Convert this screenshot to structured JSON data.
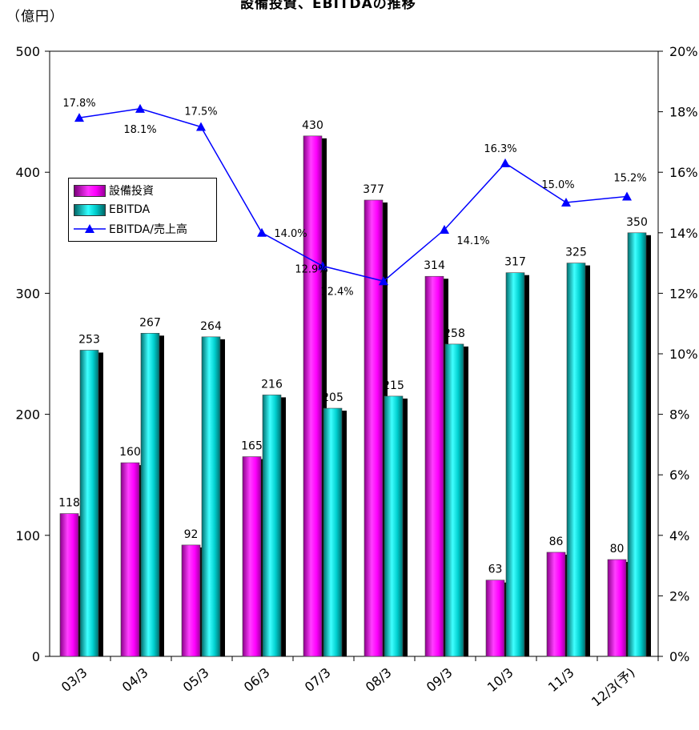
{
  "unit_label": "（億円）",
  "title": "設備投資、EBITDAの推移",
  "chart_data": {
    "type": "bar",
    "title": "設備投資、EBITDAの推移",
    "categories": [
      "03/3",
      "04/3",
      "05/3",
      "06/3",
      "07/3",
      "08/3",
      "09/3",
      "10/3",
      "11/3",
      "12/3(予)"
    ],
    "series": [
      {
        "name": "設備投資",
        "type": "bar",
        "axis": "left",
        "color": "#ff00ff",
        "values": [
          118,
          160,
          92,
          165,
          430,
          377,
          314,
          63,
          86,
          80
        ]
      },
      {
        "name": "EBITDA",
        "type": "bar",
        "axis": "left",
        "color": "#00cccc",
        "values": [
          253,
          267,
          264,
          216,
          205,
          215,
          258,
          317,
          325,
          350
        ]
      },
      {
        "name": "EBITDA/売上高",
        "type": "line",
        "axis": "right",
        "color": "#0000ff",
        "marker": "triangle",
        "values": [
          17.8,
          18.1,
          17.5,
          14.0,
          12.9,
          12.4,
          14.1,
          16.3,
          15.0,
          15.2
        ],
        "labels": [
          "17.8%",
          "18.1%",
          "17.5%",
          "14.0%",
          "12.9%",
          "12.4%",
          "14.1%",
          "16.3%",
          "15.0%",
          "15.2%"
        ]
      }
    ],
    "y_left": {
      "min": 0,
      "max": 500,
      "ticks": [
        "0",
        "100",
        "200",
        "300",
        "400",
        "500"
      ]
    },
    "y_right": {
      "min": 0,
      "max": 20,
      "ticks": [
        "0%",
        "2%",
        "4%",
        "6%",
        "8%",
        "10%",
        "12%",
        "14%",
        "16%",
        "18%",
        "20%"
      ]
    },
    "legend": {
      "position": "left-middle",
      "entries": [
        "設備投資",
        "EBITDA",
        "EBITDA/売上高"
      ]
    },
    "grid": false
  }
}
